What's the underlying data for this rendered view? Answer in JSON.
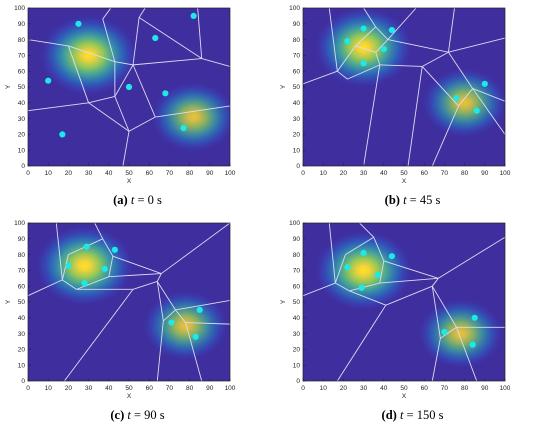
{
  "chart_data": [
    {
      "type": "scatter",
      "subtype": "heatmap-with-voronoi",
      "caption": {
        "label": "(a)",
        "var": "t",
        "rest": " = 0 s"
      },
      "xlabel": "X",
      "ylabel": "Y",
      "xlim": [
        0,
        100
      ],
      "ylim": [
        0,
        100
      ],
      "xticks": [
        0,
        10,
        20,
        30,
        40,
        50,
        60,
        70,
        80,
        90,
        100
      ],
      "yticks": [
        0,
        10,
        20,
        30,
        40,
        50,
        60,
        70,
        80,
        90,
        100
      ],
      "grid": false,
      "hotspots": [
        {
          "x": 30,
          "y": 70,
          "intensity": 1.0
        },
        {
          "x": 82,
          "y": 31,
          "intensity": 0.85
        }
      ],
      "agents": [
        {
          "x": 25,
          "y": 90
        },
        {
          "x": 82,
          "y": 95
        },
        {
          "x": 63,
          "y": 81
        },
        {
          "x": 10,
          "y": 54
        },
        {
          "x": 50,
          "y": 50
        },
        {
          "x": 68,
          "y": 46
        },
        {
          "x": 77,
          "y": 24
        },
        {
          "x": 17,
          "y": 20
        }
      ],
      "voronoi_edges": [
        [
          [
            0,
            80
          ],
          [
            20,
            76
          ]
        ],
        [
          [
            20,
            76
          ],
          [
            43,
            66
          ]
        ],
        [
          [
            43,
            66
          ],
          [
            52,
            64
          ]
        ],
        [
          [
            41,
            100
          ],
          [
            37,
            93
          ]
        ],
        [
          [
            37,
            93
          ],
          [
            43,
            66
          ]
        ],
        [
          [
            58,
            100
          ],
          [
            55,
            94
          ]
        ],
        [
          [
            55,
            94
          ],
          [
            52,
            64
          ]
        ],
        [
          [
            55,
            94
          ],
          [
            86,
            68
          ]
        ],
        [
          [
            86,
            68
          ],
          [
            100,
            63
          ]
        ],
        [
          [
            86,
            68
          ],
          [
            84,
            100
          ]
        ],
        [
          [
            52,
            64
          ],
          [
            86,
            68
          ]
        ],
        [
          [
            20,
            76
          ],
          [
            30,
            40
          ]
        ],
        [
          [
            0,
            35
          ],
          [
            30,
            40
          ]
        ],
        [
          [
            30,
            40
          ],
          [
            43,
            44
          ]
        ],
        [
          [
            43,
            66
          ],
          [
            43,
            44
          ]
        ],
        [
          [
            52,
            64
          ],
          [
            43,
            44
          ]
        ],
        [
          [
            43,
            44
          ],
          [
            50,
            22
          ]
        ],
        [
          [
            30,
            40
          ],
          [
            50,
            22
          ]
        ],
        [
          [
            50,
            22
          ],
          [
            63,
            31
          ]
        ],
        [
          [
            63,
            31
          ],
          [
            100,
            38
          ]
        ],
        [
          [
            63,
            31
          ],
          [
            52,
            64
          ]
        ],
        [
          [
            50,
            22
          ],
          [
            47,
            0
          ]
        ]
      ]
    },
    {
      "type": "scatter",
      "subtype": "heatmap-with-voronoi",
      "caption": {
        "label": "(b)",
        "var": "t",
        "rest": " = 45 s"
      },
      "xlabel": "X",
      "ylabel": "Y",
      "xlim": [
        0,
        100
      ],
      "ylim": [
        0,
        100
      ],
      "xticks": [
        0,
        10,
        20,
        30,
        40,
        50,
        60,
        70,
        80,
        90,
        100
      ],
      "yticks": [
        0,
        10,
        20,
        30,
        40,
        50,
        60,
        70,
        80,
        90,
        100
      ],
      "grid": false,
      "hotspots": [
        {
          "x": 30,
          "y": 75,
          "intensity": 1.0
        },
        {
          "x": 80,
          "y": 40,
          "intensity": 0.85
        }
      ],
      "agents": [
        {
          "x": 30,
          "y": 87
        },
        {
          "x": 44,
          "y": 86
        },
        {
          "x": 22,
          "y": 79
        },
        {
          "x": 40,
          "y": 74
        },
        {
          "x": 30,
          "y": 65
        },
        {
          "x": 90,
          "y": 52
        },
        {
          "x": 76,
          "y": 43
        },
        {
          "x": 86,
          "y": 35
        }
      ],
      "voronoi_edges": [
        [
          [
            0,
            52
          ],
          [
            17,
            60
          ]
        ],
        [
          [
            17,
            60
          ],
          [
            22,
            55
          ]
        ],
        [
          [
            17,
            60
          ],
          [
            13,
            100
          ]
        ],
        [
          [
            30,
            100
          ],
          [
            36,
            88
          ]
        ],
        [
          [
            36,
            88
          ],
          [
            42,
            80
          ]
        ],
        [
          [
            36,
            88
          ],
          [
            26,
            76
          ]
        ],
        [
          [
            26,
            76
          ],
          [
            17,
            60
          ]
        ],
        [
          [
            26,
            76
          ],
          [
            36,
            72
          ]
        ],
        [
          [
            36,
            72
          ],
          [
            42,
            80
          ]
        ],
        [
          [
            36,
            72
          ],
          [
            38,
            64
          ]
        ],
        [
          [
            38,
            64
          ],
          [
            22,
            55
          ]
        ],
        [
          [
            42,
            80
          ],
          [
            56,
            100
          ]
        ],
        [
          [
            42,
            80
          ],
          [
            72,
            72
          ]
        ],
        [
          [
            72,
            72
          ],
          [
            75,
            100
          ]
        ],
        [
          [
            72,
            72
          ],
          [
            100,
            81
          ]
        ],
        [
          [
            72,
            72
          ],
          [
            84,
            49
          ]
        ],
        [
          [
            84,
            49
          ],
          [
            100,
            41
          ]
        ],
        [
          [
            38,
            64
          ],
          [
            30,
            0
          ]
        ],
        [
          [
            38,
            64
          ],
          [
            59,
            63
          ]
        ],
        [
          [
            59,
            63
          ],
          [
            72,
            72
          ]
        ],
        [
          [
            59,
            63
          ],
          [
            52,
            0
          ]
        ],
        [
          [
            84,
            49
          ],
          [
            100,
            20
          ]
        ],
        [
          [
            77,
            38
          ],
          [
            59,
            63
          ]
        ],
        [
          [
            77,
            38
          ],
          [
            84,
            49
          ]
        ],
        [
          [
            77,
            38
          ],
          [
            64,
            0
          ]
        ]
      ]
    },
    {
      "type": "scatter",
      "subtype": "heatmap-with-voronoi",
      "caption": {
        "label": "(c)",
        "var": "t",
        "rest": " = 90 s"
      },
      "xlabel": "X",
      "ylabel": "Y",
      "xlim": [
        0,
        100
      ],
      "ylim": [
        0,
        100
      ],
      "xticks": [
        0,
        10,
        20,
        30,
        40,
        50,
        60,
        70,
        80,
        90,
        100
      ],
      "yticks": [
        0,
        10,
        20,
        30,
        40,
        50,
        60,
        70,
        80,
        90,
        100
      ],
      "grid": false,
      "hotspots": [
        {
          "x": 28,
          "y": 73,
          "intensity": 1.0
        },
        {
          "x": 78,
          "y": 35,
          "intensity": 0.85
        }
      ],
      "agents": [
        {
          "x": 29,
          "y": 85
        },
        {
          "x": 43,
          "y": 83
        },
        {
          "x": 20,
          "y": 73
        },
        {
          "x": 38,
          "y": 71
        },
        {
          "x": 28,
          "y": 62
        },
        {
          "x": 85,
          "y": 45
        },
        {
          "x": 71,
          "y": 37
        },
        {
          "x": 83,
          "y": 28
        }
      ],
      "voronoi_edges": [
        [
          [
            0,
            54
          ],
          [
            17,
            64
          ]
        ],
        [
          [
            17,
            64
          ],
          [
            14,
            100
          ]
        ],
        [
          [
            17,
            64
          ],
          [
            24,
            58
          ]
        ],
        [
          [
            24,
            58
          ],
          [
            40,
            66
          ]
        ],
        [
          [
            33,
            100
          ],
          [
            37,
            90
          ]
        ],
        [
          [
            37,
            90
          ],
          [
            20,
            80
          ]
        ],
        [
          [
            20,
            80
          ],
          [
            17,
            64
          ]
        ],
        [
          [
            37,
            90
          ],
          [
            42,
            79
          ]
        ],
        [
          [
            42,
            79
          ],
          [
            66,
            68
          ]
        ],
        [
          [
            42,
            79
          ],
          [
            40,
            66
          ]
        ],
        [
          [
            40,
            66
          ],
          [
            66,
            68
          ]
        ],
        [
          [
            66,
            68
          ],
          [
            100,
            100
          ]
        ],
        [
          [
            66,
            68
          ],
          [
            64,
            63
          ]
        ],
        [
          [
            64,
            63
          ],
          [
            73,
            45
          ]
        ],
        [
          [
            73,
            45
          ],
          [
            100,
            51
          ]
        ],
        [
          [
            64,
            63
          ],
          [
            52,
            58
          ]
        ],
        [
          [
            52,
            58
          ],
          [
            24,
            58
          ]
        ],
        [
          [
            52,
            58
          ],
          [
            18,
            0
          ]
        ],
        [
          [
            64,
            63
          ],
          [
            67,
            38
          ]
        ],
        [
          [
            67,
            38
          ],
          [
            73,
            45
          ]
        ],
        [
          [
            67,
            38
          ],
          [
            64,
            0
          ]
        ],
        [
          [
            78,
            37
          ],
          [
            100,
            36
          ]
        ],
        [
          [
            78,
            37
          ],
          [
            73,
            45
          ]
        ],
        [
          [
            78,
            37
          ],
          [
            86,
            0
          ]
        ]
      ]
    },
    {
      "type": "scatter",
      "subtype": "heatmap-with-voronoi",
      "caption": {
        "label": "(d)",
        "var": "t",
        "rest": " = 150 s"
      },
      "xlabel": "X",
      "ylabel": "Y",
      "xlim": [
        0,
        100
      ],
      "ylim": [
        0,
        100
      ],
      "xticks": [
        0,
        10,
        20,
        30,
        40,
        50,
        60,
        70,
        80,
        90,
        100
      ],
      "yticks": [
        0,
        10,
        20,
        30,
        40,
        50,
        60,
        70,
        80,
        90,
        100
      ],
      "grid": false,
      "hotspots": [
        {
          "x": 30,
          "y": 70,
          "intensity": 1.0
        },
        {
          "x": 78,
          "y": 30,
          "intensity": 0.85
        }
      ],
      "agents": [
        {
          "x": 30,
          "y": 81
        },
        {
          "x": 44,
          "y": 79
        },
        {
          "x": 22,
          "y": 72
        },
        {
          "x": 37,
          "y": 67
        },
        {
          "x": 29,
          "y": 59
        },
        {
          "x": 85,
          "y": 40
        },
        {
          "x": 70,
          "y": 31
        },
        {
          "x": 84,
          "y": 23
        }
      ],
      "voronoi_edges": [
        [
          [
            0,
            54
          ],
          [
            16,
            62
          ]
        ],
        [
          [
            16,
            62
          ],
          [
            13,
            100
          ]
        ],
        [
          [
            16,
            62
          ],
          [
            23,
            57
          ]
        ],
        [
          [
            23,
            57
          ],
          [
            38,
            62
          ]
        ],
        [
          [
            28,
            100
          ],
          [
            35,
            91
          ]
        ],
        [
          [
            35,
            91
          ],
          [
            21,
            80
          ]
        ],
        [
          [
            21,
            80
          ],
          [
            16,
            62
          ]
        ],
        [
          [
            35,
            91
          ],
          [
            40,
            76
          ]
        ],
        [
          [
            40,
            76
          ],
          [
            67,
            65
          ]
        ],
        [
          [
            40,
            76
          ],
          [
            38,
            62
          ]
        ],
        [
          [
            38,
            62
          ],
          [
            67,
            65
          ]
        ],
        [
          [
            67,
            65
          ],
          [
            100,
            91
          ]
        ],
        [
          [
            67,
            65
          ],
          [
            64,
            60
          ]
        ],
        [
          [
            64,
            60
          ],
          [
            76,
            34
          ]
        ],
        [
          [
            76,
            34
          ],
          [
            100,
            34
          ]
        ],
        [
          [
            64,
            60
          ],
          [
            41,
            48
          ]
        ],
        [
          [
            41,
            48
          ],
          [
            23,
            57
          ]
        ],
        [
          [
            41,
            48
          ],
          [
            17,
            0
          ]
        ],
        [
          [
            64,
            60
          ],
          [
            68,
            27
          ]
        ],
        [
          [
            68,
            27
          ],
          [
            76,
            34
          ]
        ],
        [
          [
            68,
            27
          ],
          [
            64,
            0
          ]
        ],
        [
          [
            76,
            34
          ],
          [
            86,
            0
          ]
        ]
      ]
    }
  ]
}
